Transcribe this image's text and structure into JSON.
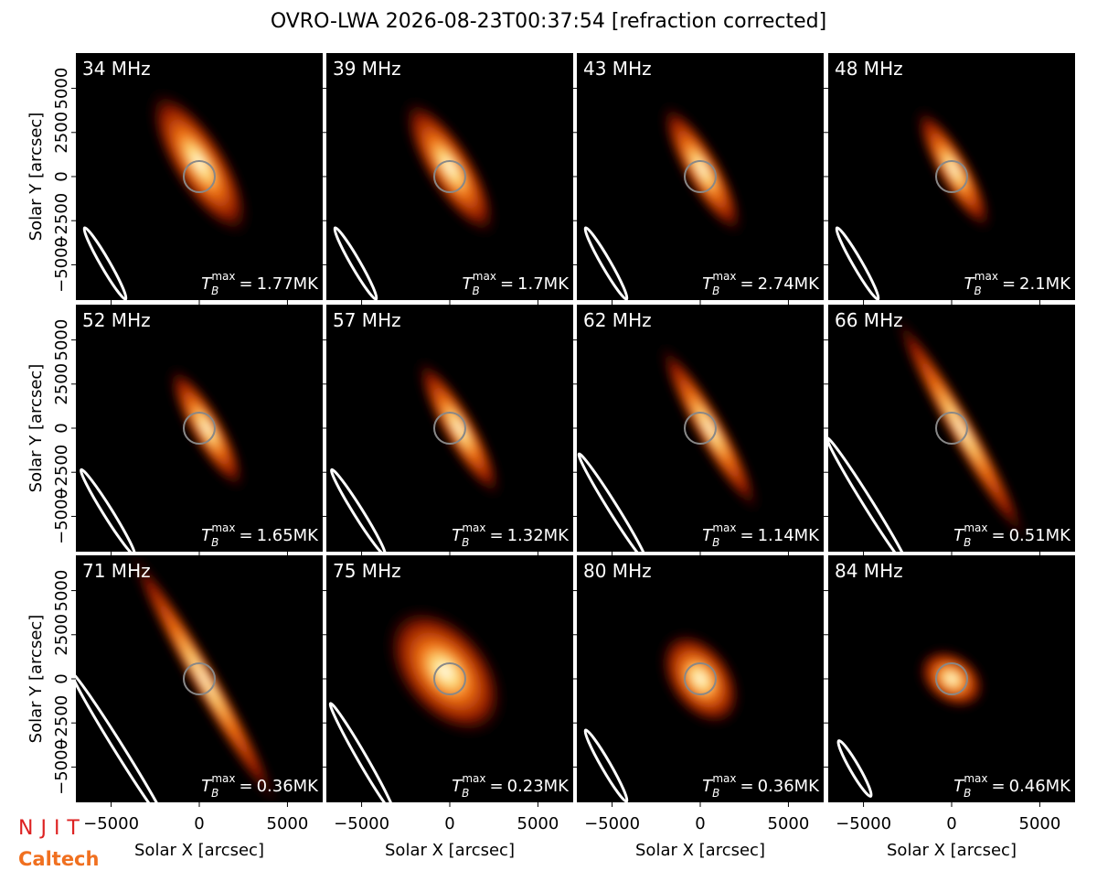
{
  "title": "OVRO-LWA 2026-08-23T00:37:54 [refraction corrected]",
  "panels": [
    {
      "label": "34 MHz",
      "tb_max": "1.77MK"
    },
    {
      "label": "39 MHz",
      "tb_max": "1.7MK"
    },
    {
      "label": "43 MHz",
      "tb_max": "2.74MK"
    },
    {
      "label": "48 MHz",
      "tb_max": "2.1MK"
    },
    {
      "label": "52 MHz",
      "tb_max": "1.65MK"
    },
    {
      "label": "57 MHz",
      "tb_max": "1.32MK"
    },
    {
      "label": "62 MHz",
      "tb_max": "1.14MK"
    },
    {
      "label": "66 MHz",
      "tb_max": "0.51MK"
    },
    {
      "label": "71 MHz",
      "tb_max": "0.36MK"
    },
    {
      "label": "75 MHz",
      "tb_max": "0.23MK"
    },
    {
      "label": "80 MHz",
      "tb_max": "0.36MK"
    },
    {
      "label": "84 MHz",
      "tb_max": "0.46MK"
    }
  ],
  "tb_symbol": {
    "symbol": "T",
    "sub": "B",
    "sup": "max",
    "eq": "="
  },
  "x_axis": {
    "label": "Solar X [arcsec]",
    "lim": [
      -7000,
      7000
    ],
    "ticks": [
      {
        "value": -5000,
        "label": "−5000"
      },
      0,
      5000
    ]
  },
  "y_axis": {
    "label": "Solar Y [arcsec]",
    "lim": [
      -7000,
      7000
    ],
    "ticks": [
      {
        "value": -5000,
        "label": "−5000"
      },
      {
        "value": -2500,
        "label": "−2500"
      },
      0,
      2500,
      5000
    ]
  },
  "logos": {
    "njit": "NJIT",
    "caltech": "Caltech"
  }
}
